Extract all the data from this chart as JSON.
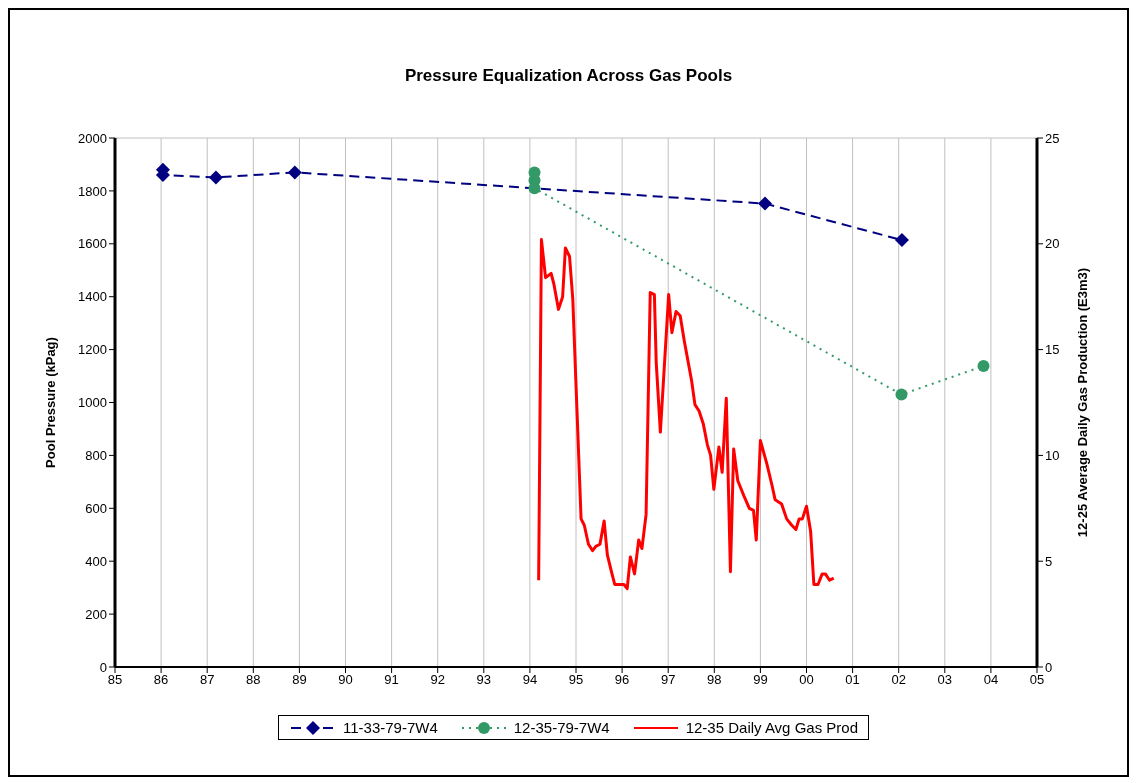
{
  "chart_data": {
    "type": "line",
    "title": "Pressure Equalization Across Gas Pools",
    "ylabel": "Pool Pressure (kPag)",
    "y2label": "12-25 Average Daily Gas Production (E3m3)",
    "xlim": [
      1985,
      2005
    ],
    "xticks": [
      {
        "value": 1985,
        "label": "85"
      },
      {
        "value": 1986,
        "label": "86"
      },
      {
        "value": 1987,
        "label": "87"
      },
      {
        "value": 1988,
        "label": "88"
      },
      {
        "value": 1989,
        "label": "89"
      },
      {
        "value": 1990,
        "label": "90"
      },
      {
        "value": 1991,
        "label": "91"
      },
      {
        "value": 1992,
        "label": "92"
      },
      {
        "value": 1993,
        "label": "93"
      },
      {
        "value": 1994,
        "label": "94"
      },
      {
        "value": 1995,
        "label": "95"
      },
      {
        "value": 1996,
        "label": "96"
      },
      {
        "value": 1997,
        "label": "97"
      },
      {
        "value": 1998,
        "label": "98"
      },
      {
        "value": 1999,
        "label": "99"
      },
      {
        "value": 2000,
        "label": "00"
      },
      {
        "value": 2001,
        "label": "01"
      },
      {
        "value": 2002,
        "label": "02"
      },
      {
        "value": 2003,
        "label": "03"
      },
      {
        "value": 2004,
        "label": "04"
      },
      {
        "value": 2005,
        "label": "05"
      }
    ],
    "ylim": [
      0,
      2000
    ],
    "yticks": [
      0,
      200,
      400,
      600,
      800,
      1000,
      1200,
      1400,
      1600,
      1800,
      2000
    ],
    "y2lim": [
      0,
      25
    ],
    "y2ticks": [
      0,
      5,
      10,
      15,
      20,
      25
    ],
    "grid": true,
    "legend": "bottom",
    "series": [
      {
        "name": "11-33-79-7W4",
        "color": "#000080",
        "marker": "diamond",
        "line_style": "dashed",
        "x": [
          1986.04,
          1986.04,
          1987.19,
          1988.9,
          1999.1,
          2002.07
        ],
        "values": [
          1880,
          1860,
          1851,
          1870,
          1752,
          1614
        ]
      },
      {
        "name": "12-35-79-7W4",
        "color": "#339966",
        "marker": "circle",
        "line_style": "dotted",
        "x": [
          1994.1,
          1994.1,
          1994.1,
          2002.06,
          2003.84
        ],
        "values": [
          1870,
          1840,
          1810,
          1030,
          1138
        ]
      },
      {
        "name": "12-35 Daily Avg Gas Prod",
        "color": "#ff0000",
        "marker": "none",
        "line_style": "solid",
        "axis": "y2",
        "x": [
          1994.19,
          1994.25,
          1994.34,
          1994.46,
          1994.52,
          1994.62,
          1994.71,
          1994.77,
          1994.86,
          1994.93,
          1995.02,
          1995.11,
          1995.18,
          1995.27,
          1995.36,
          1995.43,
          1995.52,
          1995.61,
          1995.68,
          1995.77,
          1995.84,
          1995.95,
          1996.04,
          1996.11,
          1996.18,
          1996.27,
          1996.36,
          1996.43,
          1996.52,
          1996.61,
          1996.7,
          1996.74,
          1996.83,
          1997.01,
          1997.08,
          1997.17,
          1997.26,
          1997.35,
          1997.51,
          1997.58,
          1997.67,
          1997.76,
          1997.85,
          1997.92,
          1997.99,
          1998.1,
          1998.17,
          1998.26,
          1998.35,
          1998.42,
          1998.51,
          1998.64,
          1998.76,
          1998.85,
          1998.91,
          1999.0,
          1999.14,
          1999.25,
          1999.32,
          1999.46,
          1999.57,
          1999.68,
          1999.77,
          1999.84,
          1999.91,
          2000.0,
          2000.09,
          2000.16,
          2000.25,
          2000.34,
          2000.41,
          2000.5,
          2000.59
        ],
        "values": [
          4.1,
          20.2,
          18.4,
          18.6,
          18.1,
          16.9,
          17.5,
          19.8,
          19.4,
          17.4,
          12.2,
          7.0,
          6.7,
          5.8,
          5.5,
          5.7,
          5.8,
          6.9,
          5.3,
          4.5,
          3.9,
          3.9,
          3.9,
          3.7,
          5.2,
          4.4,
          6.0,
          5.6,
          7.2,
          17.7,
          17.6,
          14.4,
          11.1,
          17.6,
          15.8,
          16.8,
          16.6,
          15.4,
          13.5,
          12.4,
          12.1,
          11.5,
          10.5,
          10.0,
          8.4,
          10.4,
          9.2,
          12.7,
          4.5,
          10.3,
          8.8,
          8.1,
          7.5,
          7.4,
          6.0,
          10.7,
          9.6,
          8.6,
          7.9,
          7.7,
          7.0,
          6.7,
          6.5,
          7.0,
          7.0,
          7.6,
          6.4,
          3.9,
          3.9,
          4.4,
          4.4,
          4.1,
          4.2
        ]
      }
    ]
  }
}
